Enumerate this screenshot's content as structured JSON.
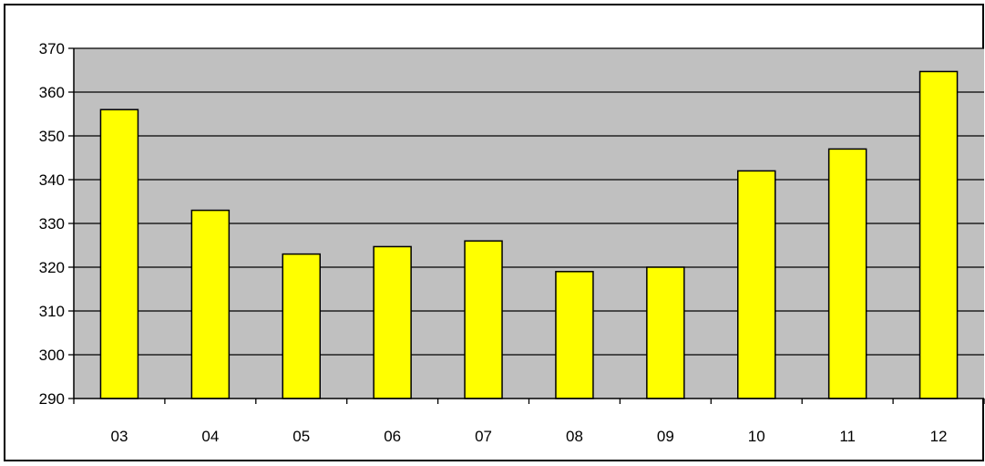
{
  "chart_data": {
    "type": "bar",
    "categories": [
      "03",
      "04",
      "05",
      "06",
      "07",
      "08",
      "09",
      "10",
      "11",
      "12"
    ],
    "values": [
      356,
      333,
      323,
      324.7,
      326,
      319,
      320,
      342,
      347,
      364.7
    ],
    "ylim": [
      290,
      370
    ],
    "y_ticks": [
      290,
      300,
      310,
      320,
      330,
      340,
      350,
      360,
      370
    ],
    "title": "",
    "xlabel": "",
    "ylabel": "",
    "grid": true,
    "legend": "none",
    "colors": {
      "bar_fill": "#ffff00",
      "plot_background": "#c0c0c0",
      "gridline": "#000000",
      "bar_outline": "#000000"
    }
  }
}
